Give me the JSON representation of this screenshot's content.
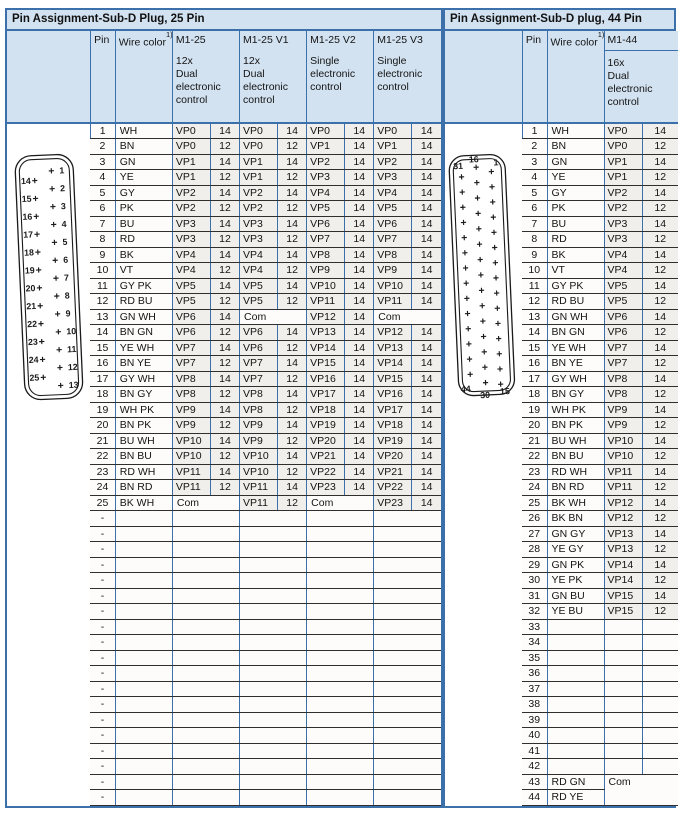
{
  "colors": {
    "accent_border": "#3c70aa",
    "header_bg": "#d2e2f1",
    "row_line": "#2f2f2f",
    "cell_tint": "#f1efeb"
  },
  "left_table": {
    "title": "Pin Assignment-Sub-D Plug, 25 Pin",
    "header": {
      "pin": "Pin",
      "wire_color": "Wire color",
      "footnote": "1)",
      "groups": [
        {
          "name": "M1-25",
          "desc": "12x\nDual\nelectronic\ncontrol"
        },
        {
          "name": "M1-25 V1",
          "desc": "12x\nDual\nelectronic\ncontrol"
        },
        {
          "name": "M1-25 V2",
          "desc": "Single\nelectronic\ncontrol"
        },
        {
          "name": "M1-25 V3",
          "desc": "Single\nelectronic\ncontrol"
        }
      ]
    },
    "rows": [
      {
        "pin": "1",
        "wire": "WH",
        "g": [
          [
            "VP0",
            "14"
          ],
          [
            "VP0",
            "14"
          ],
          [
            "VP0",
            "14"
          ],
          [
            "VP0",
            "14"
          ]
        ]
      },
      {
        "pin": "2",
        "wire": "BN",
        "g": [
          [
            "VP0",
            "12"
          ],
          [
            "VP0",
            "12"
          ],
          [
            "VP1",
            "14"
          ],
          [
            "VP1",
            "14"
          ]
        ]
      },
      {
        "pin": "3",
        "wire": "GN",
        "g": [
          [
            "VP1",
            "14"
          ],
          [
            "VP1",
            "14"
          ],
          [
            "VP2",
            "14"
          ],
          [
            "VP2",
            "14"
          ]
        ]
      },
      {
        "pin": "4",
        "wire": "YE",
        "g": [
          [
            "VP1",
            "12"
          ],
          [
            "VP1",
            "12"
          ],
          [
            "VP3",
            "14"
          ],
          [
            "VP3",
            "14"
          ]
        ]
      },
      {
        "pin": "5",
        "wire": "GY",
        "g": [
          [
            "VP2",
            "14"
          ],
          [
            "VP2",
            "14"
          ],
          [
            "VP4",
            "14"
          ],
          [
            "VP4",
            "14"
          ]
        ]
      },
      {
        "pin": "6",
        "wire": "PK",
        "g": [
          [
            "VP2",
            "12"
          ],
          [
            "VP2",
            "12"
          ],
          [
            "VP5",
            "14"
          ],
          [
            "VP5",
            "14"
          ]
        ]
      },
      {
        "pin": "7",
        "wire": "BU",
        "g": [
          [
            "VP3",
            "14"
          ],
          [
            "VP3",
            "14"
          ],
          [
            "VP6",
            "14"
          ],
          [
            "VP6",
            "14"
          ]
        ]
      },
      {
        "pin": "8",
        "wire": "RD",
        "g": [
          [
            "VP3",
            "12"
          ],
          [
            "VP3",
            "12"
          ],
          [
            "VP7",
            "14"
          ],
          [
            "VP7",
            "14"
          ]
        ]
      },
      {
        "pin": "9",
        "wire": "BK",
        "g": [
          [
            "VP4",
            "14"
          ],
          [
            "VP4",
            "14"
          ],
          [
            "VP8",
            "14"
          ],
          [
            "VP8",
            "14"
          ]
        ]
      },
      {
        "pin": "10",
        "wire": "VT",
        "g": [
          [
            "VP4",
            "12"
          ],
          [
            "VP4",
            "12"
          ],
          [
            "VP9",
            "14"
          ],
          [
            "VP9",
            "14"
          ]
        ]
      },
      {
        "pin": "11",
        "wire": "GY PK",
        "g": [
          [
            "VP5",
            "14"
          ],
          [
            "VP5",
            "14"
          ],
          [
            "VP10",
            "14"
          ],
          [
            "VP10",
            "14"
          ]
        ]
      },
      {
        "pin": "12",
        "wire": "RD BU",
        "g": [
          [
            "VP5",
            "12"
          ],
          [
            "VP5",
            "12"
          ],
          [
            "VP11",
            "14"
          ],
          [
            "VP11",
            "14"
          ]
        ]
      },
      {
        "pin": "13",
        "wire": "GN WH",
        "g": [
          [
            "VP6",
            "14"
          ],
          "Com",
          [
            "VP12",
            "14"
          ],
          "Com"
        ]
      },
      {
        "pin": "14",
        "wire": "BN GN",
        "g": [
          [
            "VP6",
            "12"
          ],
          [
            "VP6",
            "14"
          ],
          [
            "VP13",
            "14"
          ],
          [
            "VP12",
            "14"
          ]
        ]
      },
      {
        "pin": "15",
        "wire": "YE WH",
        "g": [
          [
            "VP7",
            "14"
          ],
          [
            "VP6",
            "12"
          ],
          [
            "VP14",
            "14"
          ],
          [
            "VP13",
            "14"
          ]
        ]
      },
      {
        "pin": "16",
        "wire": "BN YE",
        "g": [
          [
            "VP7",
            "12"
          ],
          [
            "VP7",
            "14"
          ],
          [
            "VP15",
            "14"
          ],
          [
            "VP14",
            "14"
          ]
        ]
      },
      {
        "pin": "17",
        "wire": "GY WH",
        "g": [
          [
            "VP8",
            "14"
          ],
          [
            "VP7",
            "12"
          ],
          [
            "VP16",
            "14"
          ],
          [
            "VP15",
            "14"
          ]
        ]
      },
      {
        "pin": "18",
        "wire": "BN GY",
        "g": [
          [
            "VP8",
            "12"
          ],
          [
            "VP8",
            "14"
          ],
          [
            "VP17",
            "14"
          ],
          [
            "VP16",
            "14"
          ]
        ]
      },
      {
        "pin": "19",
        "wire": "WH PK",
        "g": [
          [
            "VP9",
            "14"
          ],
          [
            "VP8",
            "12"
          ],
          [
            "VP18",
            "14"
          ],
          [
            "VP17",
            "14"
          ]
        ]
      },
      {
        "pin": "20",
        "wire": "BN PK",
        "g": [
          [
            "VP9",
            "12"
          ],
          [
            "VP9",
            "14"
          ],
          [
            "VP19",
            "14"
          ],
          [
            "VP18",
            "14"
          ]
        ]
      },
      {
        "pin": "21",
        "wire": "BU WH",
        "g": [
          [
            "VP10",
            "14"
          ],
          [
            "VP9",
            "12"
          ],
          [
            "VP20",
            "14"
          ],
          [
            "VP19",
            "14"
          ]
        ]
      },
      {
        "pin": "22",
        "wire": "BN BU",
        "g": [
          [
            "VP10",
            "12"
          ],
          [
            "VP10",
            "14"
          ],
          [
            "VP21",
            "14"
          ],
          [
            "VP20",
            "14"
          ]
        ]
      },
      {
        "pin": "23",
        "wire": "RD WH",
        "g": [
          [
            "VP11",
            "14"
          ],
          [
            "VP10",
            "12"
          ],
          [
            "VP22",
            "14"
          ],
          [
            "VP21",
            "14"
          ]
        ]
      },
      {
        "pin": "24",
        "wire": "BN RD",
        "g": [
          [
            "VP11",
            "12"
          ],
          [
            "VP11",
            "14"
          ],
          [
            "VP23",
            "14"
          ],
          [
            "VP22",
            "14"
          ]
        ]
      },
      {
        "pin": "25",
        "wire": "BK WH",
        "g": [
          "Com",
          [
            "VP11",
            "12"
          ],
          "Com",
          [
            "VP23",
            "14"
          ]
        ]
      },
      {
        "pin": "-",
        "wire": "",
        "g": [
          null,
          null,
          null,
          null
        ]
      },
      {
        "pin": "-",
        "wire": "",
        "g": [
          null,
          null,
          null,
          null
        ]
      },
      {
        "pin": "-",
        "wire": "",
        "g": [
          null,
          null,
          null,
          null
        ]
      },
      {
        "pin": "-",
        "wire": "",
        "g": [
          null,
          null,
          null,
          null
        ]
      },
      {
        "pin": "-",
        "wire": "",
        "g": [
          null,
          null,
          null,
          null
        ]
      },
      {
        "pin": "-",
        "wire": "",
        "g": [
          null,
          null,
          null,
          null
        ]
      },
      {
        "pin": "-",
        "wire": "",
        "g": [
          null,
          null,
          null,
          null
        ]
      },
      {
        "pin": "-",
        "wire": "",
        "g": [
          null,
          null,
          null,
          null
        ]
      },
      {
        "pin": "-",
        "wire": "",
        "g": [
          null,
          null,
          null,
          null
        ]
      },
      {
        "pin": "-",
        "wire": "",
        "g": [
          null,
          null,
          null,
          null
        ]
      },
      {
        "pin": "-",
        "wire": "",
        "g": [
          null,
          null,
          null,
          null
        ]
      },
      {
        "pin": "-",
        "wire": "",
        "g": [
          null,
          null,
          null,
          null
        ]
      },
      {
        "pin": "-",
        "wire": "",
        "g": [
          null,
          null,
          null,
          null
        ]
      },
      {
        "pin": "-",
        "wire": "",
        "g": [
          null,
          null,
          null,
          null
        ]
      },
      {
        "pin": "-",
        "wire": "",
        "g": [
          null,
          null,
          null,
          null
        ]
      },
      {
        "pin": "-",
        "wire": "",
        "g": [
          null,
          null,
          null,
          null
        ]
      },
      {
        "pin": "-",
        "wire": "",
        "g": [
          null,
          null,
          null,
          null
        ]
      },
      {
        "pin": "-",
        "wire": "",
        "g": [
          null,
          null,
          null,
          null
        ]
      },
      {
        "pin": "-",
        "wire": "",
        "g": [
          null,
          null,
          null,
          null
        ]
      }
    ]
  },
  "right_table": {
    "title": "Pin Assignment-Sub-D plug, 44 Pin",
    "header": {
      "pin": "Pin",
      "wire_color": "Wire color",
      "footnote": "1)",
      "groups": [
        {
          "name": "M1-44",
          "desc": "16x\nDual\nelectronic\ncontrol"
        }
      ]
    },
    "rows": [
      {
        "pin": "1",
        "wire": "WH",
        "vp": "VP0",
        "val": "14"
      },
      {
        "pin": "2",
        "wire": "BN",
        "vp": "VP0",
        "val": "12"
      },
      {
        "pin": "3",
        "wire": "GN",
        "vp": "VP1",
        "val": "14"
      },
      {
        "pin": "4",
        "wire": "YE",
        "vp": "VP1",
        "val": "12"
      },
      {
        "pin": "5",
        "wire": "GY",
        "vp": "VP2",
        "val": "14"
      },
      {
        "pin": "6",
        "wire": "PK",
        "vp": "VP2",
        "val": "12"
      },
      {
        "pin": "7",
        "wire": "BU",
        "vp": "VP3",
        "val": "14"
      },
      {
        "pin": "8",
        "wire": "RD",
        "vp": "VP3",
        "val": "12"
      },
      {
        "pin": "9",
        "wire": "BK",
        "vp": "VP4",
        "val": "14"
      },
      {
        "pin": "10",
        "wire": "VT",
        "vp": "VP4",
        "val": "12"
      },
      {
        "pin": "11",
        "wire": "GY PK",
        "vp": "VP5",
        "val": "14"
      },
      {
        "pin": "12",
        "wire": "RD BU",
        "vp": "VP5",
        "val": "12"
      },
      {
        "pin": "13",
        "wire": "GN WH",
        "vp": "VP6",
        "val": "14"
      },
      {
        "pin": "14",
        "wire": "BN GN",
        "vp": "VP6",
        "val": "12"
      },
      {
        "pin": "15",
        "wire": "YE WH",
        "vp": "VP7",
        "val": "14"
      },
      {
        "pin": "16",
        "wire": "BN YE",
        "vp": "VP7",
        "val": "12"
      },
      {
        "pin": "17",
        "wire": "GY WH",
        "vp": "VP8",
        "val": "14"
      },
      {
        "pin": "18",
        "wire": "BN GY",
        "vp": "VP8",
        "val": "12"
      },
      {
        "pin": "19",
        "wire": "WH PK",
        "vp": "VP9",
        "val": "14"
      },
      {
        "pin": "20",
        "wire": "BN PK",
        "vp": "VP9",
        "val": "12"
      },
      {
        "pin": "21",
        "wire": "BU WH",
        "vp": "VP10",
        "val": "14"
      },
      {
        "pin": "22",
        "wire": "BN BU",
        "vp": "VP10",
        "val": "12"
      },
      {
        "pin": "23",
        "wire": "RD WH",
        "vp": "VP11",
        "val": "14"
      },
      {
        "pin": "24",
        "wire": "BN RD",
        "vp": "VP11",
        "val": "12"
      },
      {
        "pin": "25",
        "wire": "BK WH",
        "vp": "VP12",
        "val": "14"
      },
      {
        "pin": "26",
        "wire": "BK BN",
        "vp": "VP12",
        "val": "12"
      },
      {
        "pin": "27",
        "wire": "GN GY",
        "vp": "VP13",
        "val": "14"
      },
      {
        "pin": "28",
        "wire": "YE GY",
        "vp": "VP13",
        "val": "12"
      },
      {
        "pin": "29",
        "wire": "GN PK",
        "vp": "VP14",
        "val": "14"
      },
      {
        "pin": "30",
        "wire": "YE PK",
        "vp": "VP14",
        "val": "12"
      },
      {
        "pin": "31",
        "wire": "GN BU",
        "vp": "VP15",
        "val": "14"
      },
      {
        "pin": "32",
        "wire": "YE BU",
        "vp": "VP15",
        "val": "12"
      },
      {
        "pin": "33",
        "wire": "",
        "vp": "",
        "val": ""
      },
      {
        "pin": "34",
        "wire": "",
        "vp": "",
        "val": ""
      },
      {
        "pin": "35",
        "wire": "",
        "vp": "",
        "val": ""
      },
      {
        "pin": "36",
        "wire": "",
        "vp": "",
        "val": ""
      },
      {
        "pin": "37",
        "wire": "",
        "vp": "",
        "val": ""
      },
      {
        "pin": "38",
        "wire": "",
        "vp": "",
        "val": ""
      },
      {
        "pin": "39",
        "wire": "",
        "vp": "",
        "val": ""
      },
      {
        "pin": "40",
        "wire": "",
        "vp": "",
        "val": ""
      },
      {
        "pin": "41",
        "wire": "",
        "vp": "",
        "val": ""
      },
      {
        "pin": "42",
        "wire": "",
        "vp": "",
        "val": ""
      },
      {
        "pin": "43",
        "wire": "RD GN",
        "com": "Com"
      },
      {
        "pin": "44",
        "wire": "RD YE",
        "covered": true
      }
    ]
  },
  "connector_25": {
    "left_labels": [
      "14",
      "15",
      "16",
      "17",
      "18",
      "19",
      "20",
      "21",
      "22",
      "23",
      "24",
      "25"
    ],
    "right_labels": [
      "1",
      "2",
      "3",
      "4",
      "5",
      "6",
      "7",
      "8",
      "9",
      "10",
      "11",
      "12",
      "13"
    ]
  },
  "connector_44": {
    "columns": {
      "left_count": 14,
      "middle_count": 15,
      "right_count": 15
    },
    "labels": {
      "top_left": "31",
      "top_middle": "16",
      "top_right": "1",
      "bottom_left": "44",
      "bottom_middle": "30",
      "bottom_right": "15"
    }
  }
}
